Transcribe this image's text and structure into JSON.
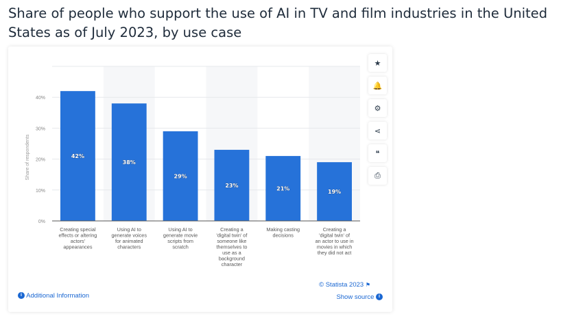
{
  "title": "Share of people who support the use of AI in TV and film industries in the United States as of July 2023, by use case",
  "chart_data": {
    "type": "bar",
    "categories": [
      "Creating special effects or altering actors' appearances",
      "Using AI to generate voices for animated characters",
      "Using AI to generate movie scripts from scratch",
      "Creating a 'digital twin' of someone like themselves to use as a background character",
      "Making casting decisions",
      "Creating a 'digital twin' of an actor to use in movies in which they did not act"
    ],
    "category_lines": [
      [
        "Creating special",
        "effects or altering",
        "actors'",
        "appearances"
      ],
      [
        "Using AI to",
        "generate voices",
        "for animated",
        "characters"
      ],
      [
        "Using AI to",
        "generate movie",
        "scripts from",
        "scratch"
      ],
      [
        "Creating a",
        "'digital twin' of",
        "someone like",
        "themselves to",
        "use as a",
        "background",
        "character"
      ],
      [
        "Making casting",
        "decisions"
      ],
      [
        "Creating a",
        "'digital twin' of",
        "an actor to use in",
        "movies in which",
        "they did not act"
      ]
    ],
    "values": [
      42,
      38,
      29,
      23,
      21,
      19
    ],
    "data_labels": [
      "42%",
      "38%",
      "29%",
      "23%",
      "21%",
      "19%"
    ],
    "ylabel": "Share of respondents",
    "ylim": [
      0,
      50
    ],
    "yticks": [
      0,
      10,
      20,
      30,
      40
    ],
    "ytick_labels": [
      "0%",
      "10%",
      "20%",
      "30%",
      "40%"
    ],
    "grid": true,
    "bar_color": "#2672d9"
  },
  "toolbar": [
    {
      "icon": "star-icon",
      "glyph": "★"
    },
    {
      "icon": "bell-icon",
      "glyph": "🔔"
    },
    {
      "icon": "gear-icon",
      "glyph": "⚙"
    },
    {
      "icon": "share-icon",
      "glyph": "⋖"
    },
    {
      "icon": "quote-icon",
      "glyph": "❝"
    },
    {
      "icon": "print-icon",
      "glyph": "⎙"
    }
  ],
  "footer": {
    "copyright": "© Statista 2023",
    "additional_info": "Additional Information",
    "show_source": "Show source"
  }
}
